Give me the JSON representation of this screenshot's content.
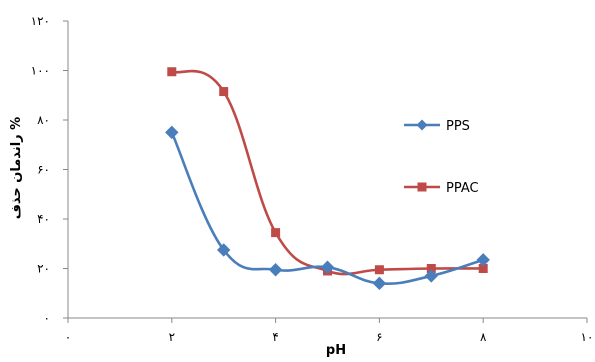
{
  "chart_data": {
    "type": "line",
    "title": "",
    "xlabel": "pH",
    "ylabel": "راندمان حذف %",
    "xlim": [
      0,
      10
    ],
    "ylim": [
      0,
      120
    ],
    "x_ticks": [
      0,
      2,
      4,
      6,
      8,
      10
    ],
    "y_ticks": [
      0,
      20,
      40,
      60,
      80,
      100,
      120
    ],
    "x_tick_labels": [
      "۰",
      "۲",
      "۴",
      "۶",
      "۸",
      "۱۰"
    ],
    "y_tick_labels": [
      "۰",
      "۲۰",
      "۴۰",
      "۶۰",
      "۸۰",
      "۱۰۰",
      "۱۲۰"
    ],
    "grid": false,
    "legend_position": "right",
    "series": [
      {
        "name": "PPS",
        "color": "#4A7EBB",
        "marker": "diamond",
        "x": [
          2,
          3,
          4,
          5,
          6,
          7,
          8
        ],
        "y": [
          75,
          27.5,
          19.5,
          20.5,
          14,
          17,
          23.5
        ]
      },
      {
        "name": "PPAC",
        "color": "#BE4B48",
        "marker": "square",
        "x": [
          2,
          3,
          4,
          5,
          6,
          7,
          8
        ],
        "y": [
          99.5,
          91.5,
          34.5,
          19,
          19.5,
          20,
          20
        ]
      }
    ]
  }
}
